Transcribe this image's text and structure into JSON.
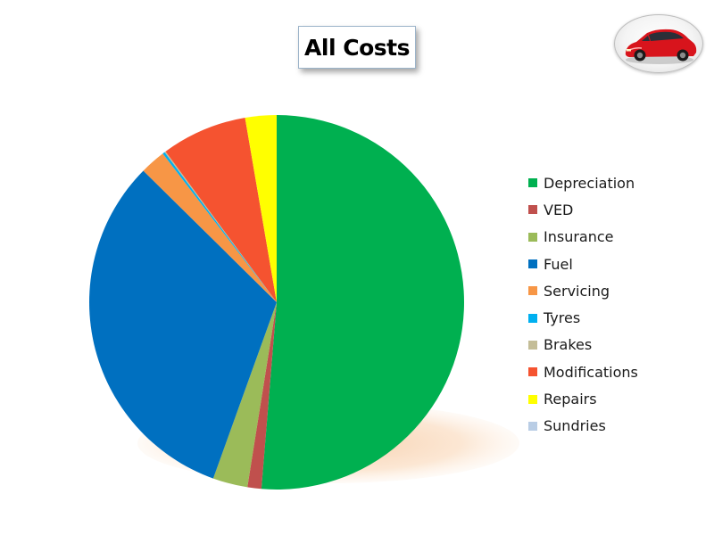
{
  "slide": {
    "title": "All Costs",
    "logo_icon": "red-hatchback-car-icon"
  },
  "chart_data": {
    "type": "pie",
    "title": "All Costs",
    "legend_position": "right",
    "start_angle_deg": 0,
    "direction": "clockwise",
    "categories": [
      "Depreciation",
      "VED",
      "Insurance",
      "Fuel",
      "Servicing",
      "Tyres",
      "Brakes",
      "Modifications",
      "Repairs",
      "Sundries"
    ],
    "values": [
      51.3,
      1.2,
      3.0,
      31.9,
      2.2,
      0.2,
      0.1,
      7.4,
      2.7,
      0.0
    ],
    "colors": [
      "#00b050",
      "#c0504d",
      "#9bbb59",
      "#0070c0",
      "#f79646",
      "#00b0f0",
      "#c4bd97",
      "#f55330",
      "#ffff00",
      "#b9cde5"
    ]
  }
}
